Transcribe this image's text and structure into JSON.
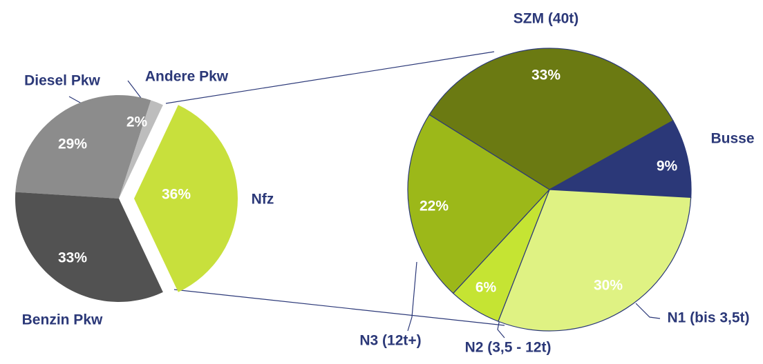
{
  "chart_data": [
    {
      "type": "pie",
      "categories": [
        "Diesel Pkw",
        "Andere Pkw",
        "Nfz",
        "Benzin Pkw"
      ],
      "values": [
        29,
        2,
        36,
        33
      ],
      "value_labels": [
        "29%",
        "2%",
        "36%",
        "33%"
      ],
      "colors": [
        "#8c8c8c",
        "#bdbdbd",
        "#c8e03c",
        "#525252"
      ]
    },
    {
      "type": "pie",
      "categories": [
        "SZM (40t)",
        "Busse",
        "N1 (bis 3,5t)",
        "N2 (3,5 - 12t)",
        "N3 (12t+)"
      ],
      "values": [
        33,
        9,
        30,
        6,
        22
      ],
      "value_labels": [
        "33%",
        "9%",
        "30%",
        "6%",
        "22%"
      ],
      "colors": [
        "#6b7a12",
        "#2b3878",
        "#dff283",
        "#c5e433",
        "#9cb819"
      ]
    }
  ]
}
